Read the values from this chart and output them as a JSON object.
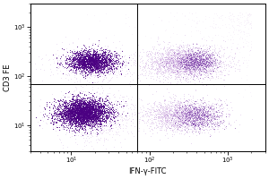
{
  "xlabel": "IFN-γ-FITC",
  "ylabel": "CD3 FE",
  "dot_color_dense": "#4B0082",
  "dot_color_mid": "#7B3FA8",
  "dot_color_light": "#C8A0DC",
  "background": "#ffffff",
  "xlim": [
    3,
    3000
  ],
  "ylim": [
    3,
    3000
  ],
  "quadrant_x": 70,
  "quadrant_y": 70,
  "random_seed": 42
}
